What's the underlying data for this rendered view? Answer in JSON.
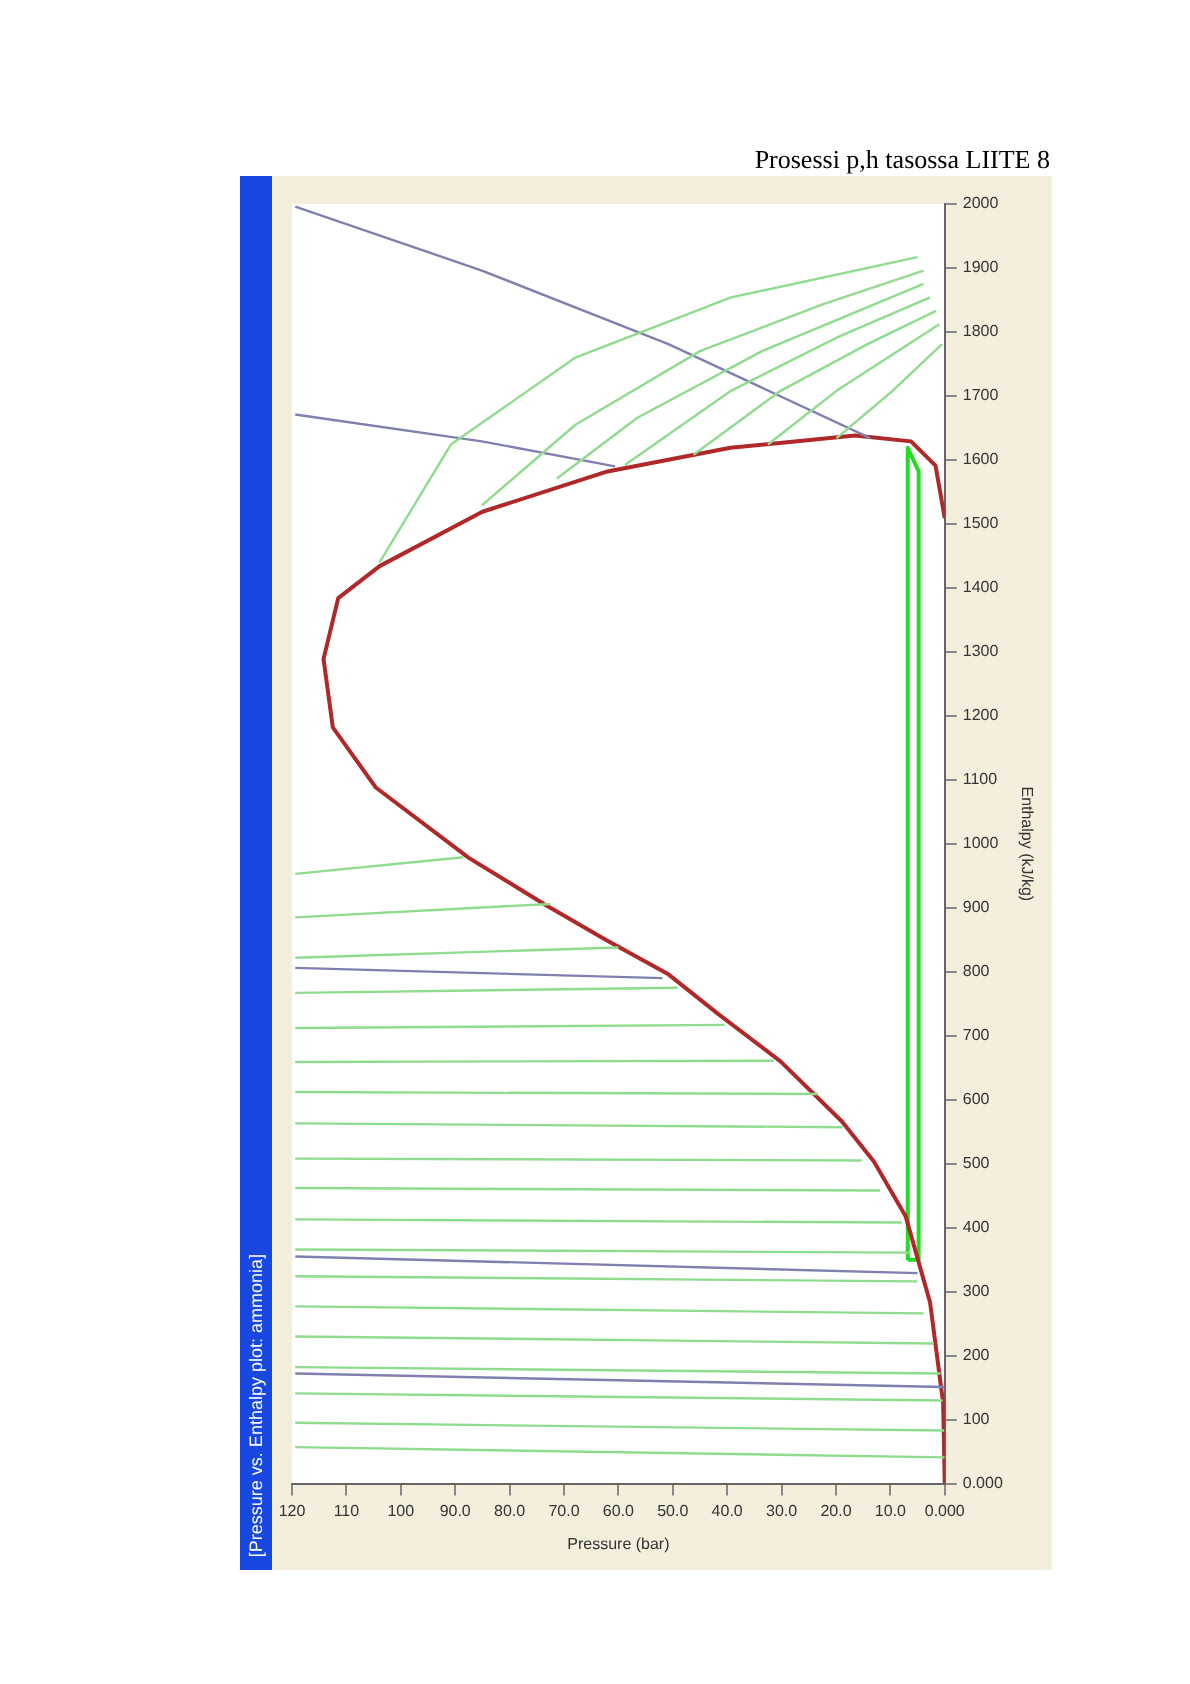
{
  "chart_data": {
    "type": "line",
    "title": "[Pressure vs. Enthalpy plot: ammonia]",
    "annotations": [
      "Prosessi p,h tasossa LIITE 8"
    ],
    "xlabel": "Pressure (bar)",
    "ylabel": "Enthalpy (kJ/kg)",
    "ylim": [
      0,
      2000
    ],
    "yticks": [
      {
        "value": 0,
        "label": "0.000"
      },
      100,
      200,
      300,
      400,
      500,
      600,
      700,
      800,
      900,
      1000,
      1100,
      1200,
      1300,
      1400,
      1500,
      1600,
      1700,
      1800,
      1900,
      2000
    ],
    "xlim": [
      120,
      0
    ],
    "xticks": [
      {
        "value": 0,
        "label": "0.000"
      },
      {
        "value": 10,
        "label": "10.0"
      },
      {
        "value": 20,
        "label": "20.0"
      },
      {
        "value": 30,
        "label": "30.0"
      },
      {
        "value": 40,
        "label": "40.0"
      },
      {
        "value": 50,
        "label": "50.0"
      },
      {
        "value": 60,
        "label": "60.0"
      },
      {
        "value": 70,
        "label": "70.0"
      },
      {
        "value": 80,
        "label": "80.0"
      },
      {
        "value": 90,
        "label": "90.0"
      },
      100,
      110,
      120
    ],
    "grid": false,
    "legend": false,
    "marker": "none",
    "line_style": "solid",
    "series": [
      {
        "color": "#8fdc8f",
        "values": [
          57,
          41
        ],
        "x": [
          119.4,
          0
        ]
      },
      {
        "color": "#8fdc8f",
        "values": [
          95,
          83
        ],
        "x": [
          119.4,
          0.1
        ]
      },
      {
        "color": "#8fdc8f",
        "values": [
          141,
          130
        ],
        "x": [
          119.4,
          0.4
        ]
      },
      {
        "color": "#8fdc8f",
        "values": [
          182,
          172
        ],
        "x": [
          119.4,
          0.8
        ]
      },
      {
        "color": "#8fdc8f",
        "values": [
          230,
          219
        ],
        "x": [
          119.4,
          2.0
        ]
      },
      {
        "color": "#8fdc8f",
        "values": [
          277,
          266
        ],
        "x": [
          119.4,
          3.9
        ]
      },
      {
        "color": "#8fdc8f",
        "values": [
          324,
          316
        ],
        "x": [
          119.4,
          5.0
        ]
      },
      {
        "color": "#8fdc8f",
        "values": [
          366,
          361
        ],
        "x": [
          119.4,
          6.2
        ]
      },
      {
        "color": "#8fdc8f",
        "values": [
          413,
          408
        ],
        "x": [
          119.4,
          7.9
        ]
      },
      {
        "color": "#8fdc8f",
        "values": [
          462,
          458
        ],
        "x": [
          119.4,
          11.9
        ]
      },
      {
        "color": "#8fdc8f",
        "values": [
          508,
          505
        ],
        "x": [
          119.4,
          15.3
        ]
      },
      {
        "color": "#8fdc8f",
        "values": [
          563,
          557
        ],
        "x": [
          119.4,
          18.8
        ]
      },
      {
        "color": "#8fdc8f",
        "values": [
          612,
          609
        ],
        "x": [
          119.4,
          23.3
        ]
      },
      {
        "color": "#8fdc8f",
        "values": [
          659,
          661
        ],
        "x": [
          119.4,
          31.4
        ]
      },
      {
        "color": "#8fdc8f",
        "values": [
          712,
          717
        ],
        "x": [
          119.4,
          40.5
        ]
      },
      {
        "color": "#8fdc8f",
        "values": [
          767,
          775
        ],
        "x": [
          119.4,
          49.1
        ]
      },
      {
        "color": "#8fdc8f",
        "values": [
          822,
          838
        ],
        "x": [
          119.4,
          60.0
        ]
      },
      {
        "color": "#8fdc8f",
        "values": [
          885,
          906
        ],
        "x": [
          119.4,
          72.5
        ]
      },
      {
        "color": "#8fdc8f",
        "values": [
          953,
          979
        ],
        "x": [
          119.4,
          88.5
        ]
      },
      {
        "color": "#8fdc8f",
        "values": [
          1440,
          1624,
          1760,
          1854,
          1917
        ],
        "x": [
          103.9,
          90.8,
          67.9,
          39.3,
          5.0
        ]
      },
      {
        "color": "#8fdc8f",
        "values": [
          1529,
          1655,
          1770,
          1844,
          1896
        ],
        "x": [
          85.1,
          67.9,
          45.0,
          22.2,
          3.9
        ]
      },
      {
        "color": "#8fdc8f",
        "values": [
          1571,
          1666,
          1770,
          1875
        ],
        "x": [
          71.3,
          56.5,
          33.6,
          3.9
        ]
      },
      {
        "color": "#8fdc8f",
        "values": [
          1592,
          1708,
          1791,
          1854
        ],
        "x": [
          58.8,
          39.3,
          19.9,
          2.7
        ]
      },
      {
        "color": "#8fdc8f",
        "values": [
          1608,
          1708,
          1781,
          1833
        ],
        "x": [
          46.2,
          30.2,
          14.2,
          1.6
        ]
      },
      {
        "color": "#8fdc8f",
        "values": [
          1624,
          1708,
          1812
        ],
        "x": [
          32.5,
          19.9,
          1.0
        ]
      },
      {
        "color": "#8fdc8f",
        "values": [
          1634,
          1708,
          1781
        ],
        "x": [
          19.9,
          9.6,
          0.5
        ]
      },
      {
        "color": "#8080b0",
        "values": [
          806,
          790
        ],
        "x": [
          119.4,
          51.9
        ]
      },
      {
        "color": "#8080b0",
        "values": [
          355,
          329
        ],
        "x": [
          119.4,
          5.0
        ]
      },
      {
        "color": "#8080b0",
        "values": [
          172,
          151
        ],
        "x": [
          119.4,
          0
        ]
      },
      {
        "color": "#8080b0",
        "values": [
          1996,
          1896,
          1781,
          1634
        ],
        "x": [
          119.4,
          85.1,
          50.8,
          13.7
        ]
      },
      {
        "color": "#8080b0",
        "values": [
          1671,
          1629,
          1590
        ],
        "x": [
          119.4,
          85.1,
          60.6
        ]
      },
      {
        "color": "#b02828",
        "values": [
          0,
          126,
          283,
          418,
          503,
          566,
          660,
          733,
          796,
          849,
          906,
          978,
          1088,
          1182,
          1289,
          1384,
          1434,
          1519,
          1582,
          1619,
          1638,
          1629,
          1591,
          1509
        ],
        "x": [
          0,
          0.3,
          2.7,
          7.2,
          13.0,
          18.9,
          30.2,
          41.5,
          50.8,
          62.1,
          73.7,
          87.5,
          104.6,
          112.5,
          114.2,
          111.5,
          103.9,
          85.0,
          62.0,
          39.4,
          16.5,
          6.2,
          1.7,
          0
        ]
      },
      {
        "color": "#22dd22",
        "values": [
          349,
          1619,
          1582,
          349
        ],
        "x": [
          6.8,
          6.8,
          4.8,
          4.8
        ]
      },
      {
        "color": "#22dd22",
        "values": [
          350,
          350
        ],
        "x": [
          4.8,
          6.8
        ]
      }
    ]
  }
}
